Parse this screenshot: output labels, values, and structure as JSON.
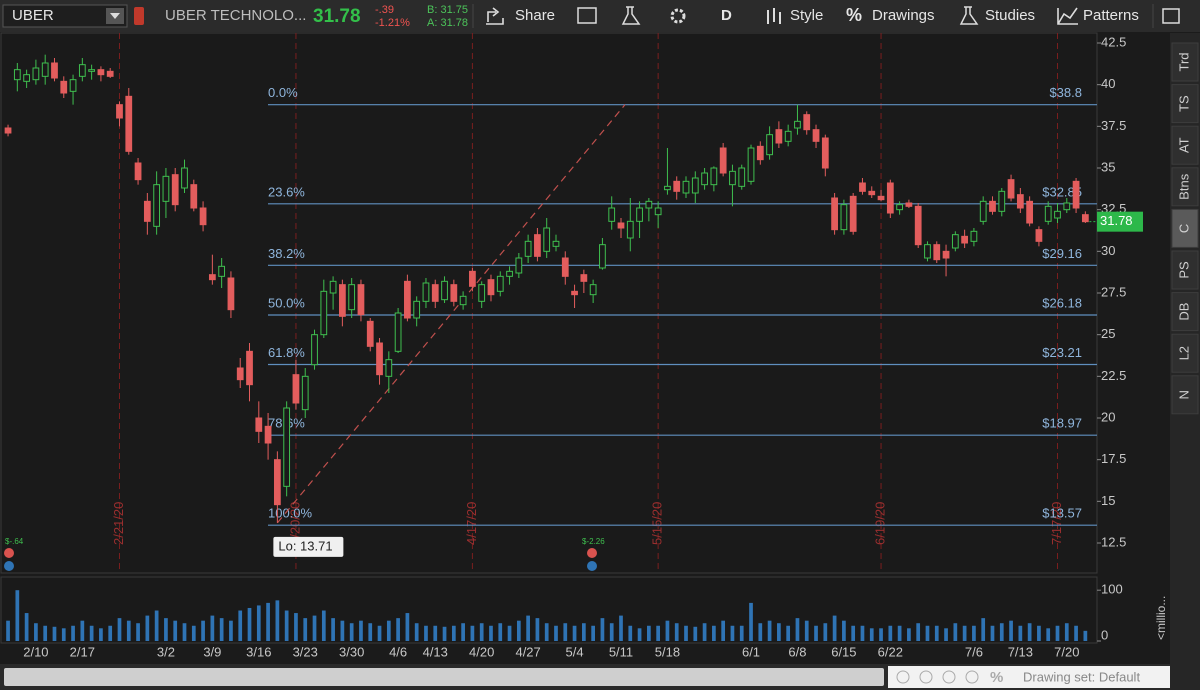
{
  "toolbar": {
    "symbol": "UBER",
    "company": "UBER TECHNOLO...",
    "change": "-.39",
    "change_pct": "-1.21%",
    "bid": "B: 31.75",
    "ask": "A: 31.78",
    "share": "Share",
    "period": "D",
    "style": "Style",
    "drawings": "Drawings",
    "studies": "Studies",
    "patterns": "Patterns"
  },
  "side_tabs": [
    "Trd",
    "TS",
    "AT",
    "Btns",
    "C",
    "PS",
    "DB",
    "L2",
    "N"
  ],
  "status": {
    "drawing_set": "Drawing set: Default"
  },
  "chart_data": {
    "type": "candlestick",
    "up_color": "#3fbf4f",
    "down_color": "#e35d5d",
    "categories": [
      null,
      null,
      null,
      "2/10",
      null,
      null,
      null,
      null,
      "2/17",
      null,
      null,
      null,
      null,
      null,
      null,
      null,
      null,
      "3/2",
      null,
      null,
      null,
      null,
      "3/9",
      null,
      null,
      null,
      null,
      "3/16",
      null,
      null,
      null,
      null,
      "3/23",
      null,
      null,
      null,
      null,
      "3/30",
      null,
      null,
      null,
      null,
      "4/6",
      null,
      null,
      null,
      "4/13",
      null,
      null,
      null,
      null,
      "4/20",
      null,
      null,
      null,
      null,
      "4/27",
      null,
      null,
      null,
      null,
      "5/4",
      null,
      null,
      null,
      null,
      "5/11",
      null,
      null,
      null,
      null,
      "5/18",
      null,
      null,
      null,
      null,
      null,
      null,
      null,
      null,
      "6/1",
      null,
      null,
      null,
      null,
      "6/8",
      null,
      null,
      null,
      null,
      "6/15",
      null,
      null,
      null,
      null,
      "6/22",
      null,
      null,
      null,
      null,
      null,
      null,
      null,
      null,
      "7/6",
      null,
      null,
      null,
      null,
      "7/13",
      null,
      null,
      null,
      null,
      "7/20",
      null,
      null
    ],
    "open": [
      37.4,
      40.3,
      40.2,
      40.3,
      40.5,
      41.3,
      40.2,
      39.6,
      40.5,
      40.8,
      40.9,
      40.8,
      38.8,
      39.3,
      35.3,
      33.0,
      31.5,
      33.0,
      34.6,
      33.8,
      34.0,
      32.6,
      28.6,
      28.5,
      28.4,
      23.0,
      24.0,
      20.0,
      19.5,
      17.5,
      15.9,
      22.6,
      20.5,
      23.2,
      25.0,
      27.5,
      28.0,
      26.5,
      28.0,
      25.8,
      24.5,
      22.5,
      24.0,
      28.2,
      26.0,
      27.0,
      28.0,
      27.1,
      28.0,
      26.8,
      28.8,
      27.0,
      28.3,
      27.6,
      28.5,
      28.7,
      29.7,
      31.0,
      30.0,
      30.3,
      29.6,
      27.6,
      28.6,
      27.4,
      29.0,
      31.8,
      31.7,
      30.8,
      31.8,
      32.6,
      32.2,
      33.7,
      34.2,
      33.5,
      33.5,
      34.0,
      34.0,
      36.2,
      34.0,
      33.9,
      34.2,
      36.3,
      35.8,
      37.3,
      36.6,
      37.4,
      38.2,
      37.3,
      36.8,
      33.2,
      31.3,
      33.3,
      34.1,
      33.6,
      33.3,
      34.1,
      32.5,
      32.9,
      32.7,
      29.6,
      30.4,
      30.0,
      30.2,
      30.9,
      30.6,
      31.8,
      33.0,
      32.4,
      34.3,
      33.4,
      33.0,
      31.3,
      31.8,
      32.0,
      32.5,
      34.2,
      32.2
    ],
    "high": [
      37.6,
      41.3,
      40.9,
      41.5,
      41.8,
      41.6,
      40.5,
      40.6,
      41.6,
      41.2,
      41.1,
      41.0,
      39.0,
      39.8,
      35.6,
      33.5,
      34.8,
      35.0,
      35.0,
      35.5,
      34.3,
      33.0,
      29.8,
      29.6,
      28.8,
      23.6,
      24.5,
      21.0,
      20.3,
      18.0,
      21.0,
      23.5,
      23.0,
      25.3,
      28.3,
      28.5,
      28.3,
      28.4,
      28.3,
      26.0,
      24.8,
      24.0,
      26.6,
      28.6,
      27.3,
      28.4,
      28.3,
      28.5,
      28.3,
      27.6,
      29.0,
      28.2,
      28.6,
      28.8,
      29.1,
      29.9,
      31.0,
      31.4,
      32.0,
      31.0,
      30.0,
      28.0,
      28.9,
      28.3,
      30.8,
      33.3,
      32.0,
      33.2,
      33.0,
      33.2,
      33.0,
      36.2,
      34.5,
      34.5,
      34.8,
      35.0,
      35.1,
      36.5,
      35.2,
      35.2,
      36.4,
      36.6,
      37.5,
      37.8,
      37.6,
      38.8,
      38.4,
      37.6,
      37.0,
      33.5,
      33.1,
      33.5,
      34.4,
      33.9,
      33.7,
      34.3,
      33.0,
      33.1,
      32.9,
      30.6,
      30.6,
      30.4,
      31.2,
      31.3,
      31.4,
      33.3,
      33.3,
      33.8,
      34.6,
      33.8,
      33.3,
      31.5,
      33.0,
      32.9,
      33.2,
      34.4,
      32.4
    ],
    "low": [
      36.9,
      39.6,
      39.8,
      40.0,
      40.0,
      40.2,
      39.2,
      38.8,
      40.2,
      40.3,
      40.2,
      40.4,
      37.5,
      35.8,
      34.0,
      31.0,
      31.0,
      32.0,
      32.4,
      33.5,
      32.4,
      31.2,
      28.0,
      27.8,
      26.0,
      21.8,
      21.0,
      18.5,
      17.5,
      13.71,
      15.3,
      20.5,
      20.0,
      22.9,
      24.8,
      26.5,
      25.5,
      26.0,
      25.8,
      24.0,
      22.0,
      21.5,
      23.9,
      25.8,
      25.5,
      26.6,
      26.6,
      26.9,
      26.7,
      26.5,
      27.6,
      26.6,
      27.0,
      27.3,
      28.0,
      28.4,
      29.3,
      29.4,
      29.6,
      30.0,
      28.0,
      26.6,
      27.5,
      26.9,
      28.9,
      31.3,
      30.8,
      30.0,
      30.8,
      31.8,
      31.4,
      33.4,
      33.1,
      33.2,
      32.9,
      33.7,
      33.6,
      34.5,
      32.7,
      33.7,
      34.0,
      35.2,
      35.5,
      36.2,
      36.3,
      37.0,
      37.0,
      36.2,
      34.5,
      31.0,
      31.0,
      31.0,
      33.4,
      33.2,
      33.0,
      32.0,
      32.2,
      32.6,
      30.2,
      29.4,
      29.3,
      28.5,
      30.0,
      30.2,
      30.3,
      31.6,
      32.2,
      32.1,
      33.0,
      32.3,
      31.5,
      30.3,
      31.6,
      31.7,
      32.3,
      32.3,
      31.7
    ],
    "close": [
      37.1,
      40.9,
      40.6,
      41.0,
      41.3,
      40.4,
      39.5,
      40.3,
      41.2,
      40.9,
      40.6,
      40.5,
      38.0,
      36.0,
      34.3,
      31.8,
      34.0,
      34.5,
      32.8,
      35.0,
      32.6,
      31.6,
      28.3,
      29.1,
      26.5,
      22.3,
      22.0,
      19.2,
      18.5,
      14.8,
      20.6,
      20.9,
      22.5,
      25.0,
      27.6,
      28.2,
      26.1,
      28.0,
      26.2,
      24.3,
      22.6,
      23.5,
      26.3,
      26.0,
      27.0,
      28.1,
      27.0,
      28.2,
      27.0,
      27.3,
      27.9,
      28.0,
      27.4,
      28.5,
      28.8,
      29.6,
      30.6,
      29.7,
      31.4,
      30.6,
      28.5,
      27.4,
      28.2,
      28.0,
      30.4,
      32.6,
      31.4,
      31.8,
      32.6,
      33.0,
      32.6,
      33.9,
      33.6,
      34.2,
      34.4,
      34.7,
      35.0,
      34.7,
      34.8,
      35.0,
      36.2,
      35.5,
      37.0,
      36.5,
      37.2,
      37.8,
      37.3,
      36.6,
      35.0,
      31.3,
      32.8,
      31.2,
      33.6,
      33.4,
      33.1,
      32.3,
      32.8,
      32.7,
      30.4,
      30.4,
      29.5,
      29.6,
      31.0,
      30.5,
      31.2,
      33.0,
      32.4,
      33.6,
      33.2,
      32.6,
      31.7,
      30.6,
      32.7,
      32.4,
      32.9,
      32.6,
      31.78
    ],
    "ylim": [
      10.7,
      43.1
    ],
    "yticks": [
      12.5,
      15,
      17.5,
      20,
      22.5,
      25,
      27.5,
      30,
      32.5,
      35,
      37.5,
      40,
      42.5
    ],
    "price_tag_color": "#2db84a",
    "lo_label": "Lo: 13.71",
    "fib_color": "#5f8fbf",
    "fib_levels": [
      {
        "label": "0.0%",
        "value": 38.8,
        "value_label": "$38.8"
      },
      {
        "label": "23.6%",
        "value": 32.85,
        "value_label": "$32.85"
      },
      {
        "label": "38.2%",
        "value": 29.16,
        "value_label": "$29.16"
      },
      {
        "label": "50.0%",
        "value": 26.18,
        "value_label": "$26.18"
      },
      {
        "label": "61.8%",
        "value": 23.21,
        "value_label": "$23.21"
      },
      {
        "label": "78.6%",
        "value": 18.97,
        "value_label": "$18.97"
      },
      {
        "label": "100.0%",
        "value": 13.57,
        "value_label": "$13.57"
      }
    ],
    "event_lines": [
      "2/21/20",
      "3/20/20",
      "4/17/20",
      "5/15/20",
      "6/19/20",
      "7/17/20"
    ],
    "earnings": [
      "$-.64",
      "$-2.26"
    ],
    "volume": {
      "color": "#2f74b5",
      "unit_label": "<millio...",
      "values": [
        40,
        100,
        55,
        35,
        30,
        28,
        25,
        30,
        40,
        30,
        25,
        30,
        45,
        40,
        35,
        50,
        60,
        45,
        40,
        35,
        30,
        40,
        50,
        45,
        40,
        60,
        65,
        70,
        75,
        80,
        60,
        55,
        45,
        50,
        60,
        45,
        40,
        35,
        40,
        35,
        30,
        40,
        45,
        55,
        35,
        30,
        30,
        28,
        30,
        35,
        30,
        35,
        30,
        35,
        30,
        40,
        50,
        45,
        35,
        30,
        35,
        30,
        35,
        30,
        45,
        35,
        50,
        30,
        25,
        30,
        30,
        40,
        35,
        30,
        28,
        35,
        30,
        40,
        30,
        30,
        75,
        35,
        40,
        35,
        30,
        45,
        40,
        30,
        35,
        50,
        40,
        30,
        30,
        25,
        25,
        30,
        30,
        25,
        35,
        30,
        30,
        25,
        35,
        30,
        30,
        45,
        30,
        35,
        40,
        30,
        35,
        30,
        25,
        30,
        35,
        30,
        20
      ],
      "ylim": [
        0,
        124
      ],
      "yticks": [
        0,
        100
      ]
    }
  }
}
